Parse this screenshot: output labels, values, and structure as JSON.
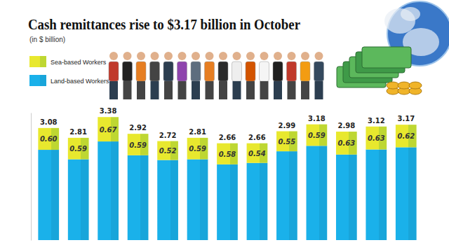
{
  "chart_data": {
    "type": "bar",
    "title": "Cash remittances rise to $3.17 billion in October",
    "subtitle": "(in $ billion)",
    "categories": [
      null,
      null,
      null,
      null,
      null,
      null,
      null,
      null,
      null,
      null,
      null,
      null,
      null
    ],
    "series": [
      {
        "name": "Land-based Workers",
        "color": "#1ab1ea",
        "values": [
          2.48,
          2.22,
          2.71,
          2.33,
          2.2,
          2.22,
          2.08,
          2.12,
          2.44,
          2.59,
          2.35,
          2.49,
          2.55
        ]
      },
      {
        "name": "Sea-based Workers",
        "color": "#e8e82e",
        "values": [
          0.6,
          0.59,
          0.67,
          0.59,
          0.52,
          0.59,
          0.58,
          0.54,
          0.55,
          0.59,
          0.63,
          0.63,
          0.62
        ],
        "value_labels": [
          "0.60",
          "0.59",
          "0.67",
          "0.59",
          "0.52",
          "0.59",
          "0.58",
          "0.54",
          "0.55",
          "0.59",
          "0.63",
          "0.63",
          "0.62"
        ]
      }
    ],
    "totals": [
      3.08,
      2.81,
      3.38,
      2.92,
      2.72,
      2.81,
      2.66,
      2.66,
      2.99,
      3.18,
      2.98,
      3.12,
      3.17
    ],
    "ylim": [
      0,
      3.5
    ],
    "yticks": [],
    "stacked": true,
    "data_labels": true,
    "tick_labels": false,
    "legend": "top-left"
  }
}
